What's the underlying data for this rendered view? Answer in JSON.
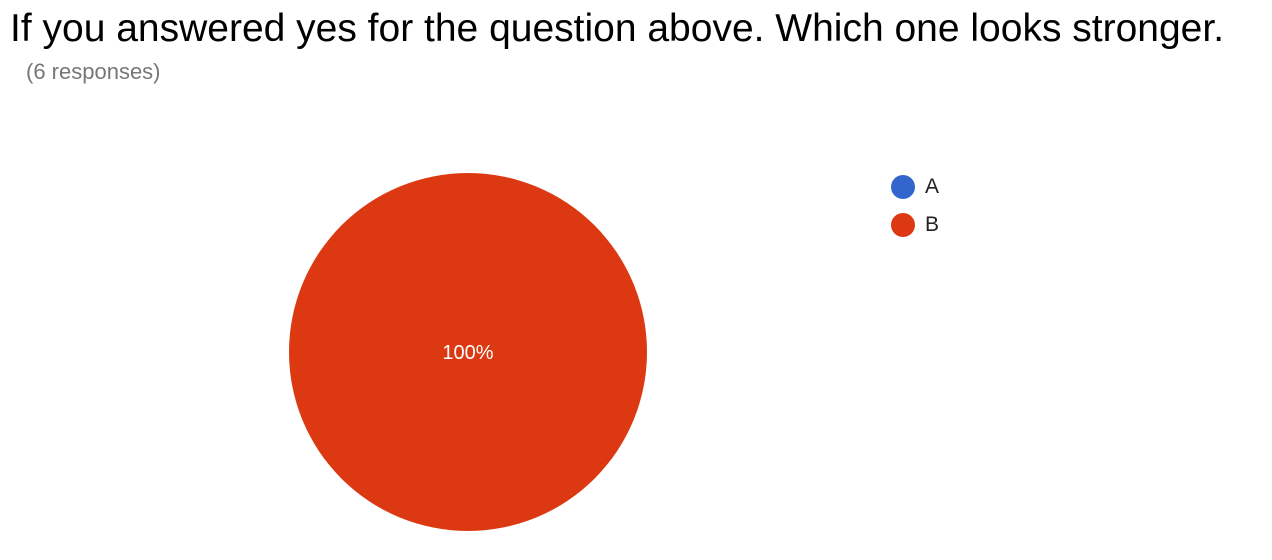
{
  "question": {
    "title": "If you answered yes for the question above. Which one looks stronger.",
    "responses_label": "(6 responses)"
  },
  "chart_data": {
    "type": "pie",
    "categories": [
      "A",
      "B"
    ],
    "values": [
      0,
      100
    ],
    "colors": [
      "#3366cc",
      "#dc3912"
    ],
    "slice_labels": [
      "",
      "100%"
    ],
    "legend_position": "right"
  }
}
